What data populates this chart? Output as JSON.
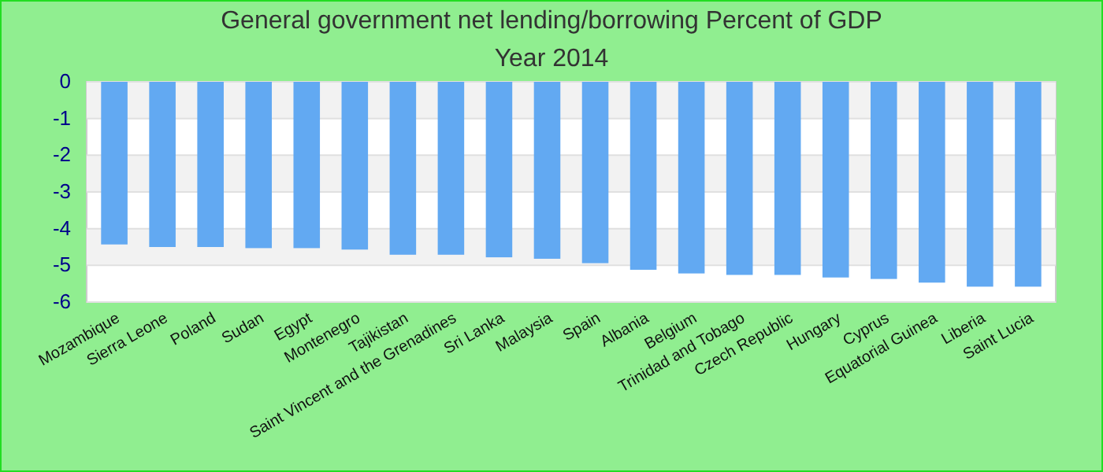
{
  "chart_data": {
    "type": "bar",
    "title": "General government net lending/borrowing  Percent of GDP",
    "subtitle": "Year 2014",
    "categories": [
      "Mozambique",
      "Sierra Leone",
      "Poland",
      "Sudan",
      "Egypt",
      "Montenegro",
      "Tajikistan",
      "Saint Vincent and the Grenadines",
      "Sri Lanka",
      "Malaysia",
      "Spain",
      "Albania",
      "Belgium",
      "Trinidad and Tobago",
      "Czech Republic",
      "Hungary",
      "Cyprus",
      "Equatorial Guinea",
      "Liberia",
      "Saint Lucia"
    ],
    "values": [
      -4.43,
      -4.5,
      -4.5,
      -4.53,
      -4.53,
      -4.57,
      -4.71,
      -4.71,
      -4.78,
      -4.82,
      -4.94,
      -5.12,
      -5.22,
      -5.26,
      -5.26,
      -5.33,
      -5.37,
      -5.47,
      -5.58,
      -5.58
    ],
    "color": "#62a9f2",
    "ylim": [
      -6,
      0
    ],
    "yticks": [
      0,
      -1,
      -2,
      -3,
      -4,
      -5,
      -6
    ],
    "grid": true
  }
}
